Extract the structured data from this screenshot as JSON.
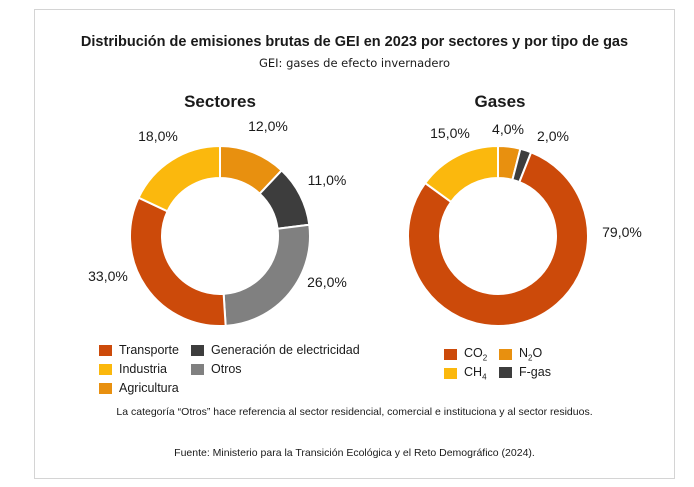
{
  "title": "Distribución de emisiones brutas de GEI en 2023 por sectores y por tipo de gas",
  "subtitle": "GEI: gases de efecto invernadero",
  "note": "La categoría “Otros” hace referencia al sector residencial, comercial e instituciona y al sector residuos.",
  "source": "Fuente: Ministerio para la Transición Ecológica y el Reto Demográfico (2024).",
  "chart_data": [
    {
      "type": "pie",
      "donut": true,
      "title": "Sectores",
      "slices": [
        {
          "label": "Agricultura",
          "value": 12.0,
          "display": "12,0%",
          "color": "#e8900f"
        },
        {
          "label": "Generación de electricidad",
          "value": 11.0,
          "display": "11,0%",
          "color": "#3d3d3d"
        },
        {
          "label": "Otros",
          "value": 26.0,
          "display": "26,0%",
          "color": "#808080"
        },
        {
          "label": "Transporte",
          "value": 33.0,
          "display": "33,0%",
          "color": "#cc4a0a"
        },
        {
          "label": "Industria",
          "value": 18.0,
          "display": "18,0%",
          "color": "#fbb80d"
        }
      ],
      "legend": [
        {
          "label": "Transporte",
          "color": "#cc4a0a"
        },
        {
          "label": "Generación de electricidad",
          "color": "#3d3d3d"
        },
        {
          "label": "Industria",
          "color": "#fbb80d"
        },
        {
          "label": "Otros",
          "color": "#808080"
        },
        {
          "label": "Agricultura",
          "color": "#e8900f"
        }
      ]
    },
    {
      "type": "pie",
      "donut": true,
      "title": "Gases",
      "slices": [
        {
          "label": "N2O",
          "value": 4.0,
          "display": "4,0%",
          "color": "#e8900f"
        },
        {
          "label": "F-gas",
          "value": 2.0,
          "display": "2,0%",
          "color": "#3d3d3d"
        },
        {
          "label": "CO2",
          "value": 79.0,
          "display": "79,0%",
          "color": "#cc4a0a"
        },
        {
          "label": "CH4",
          "value": 15.0,
          "display": "15,0%",
          "color": "#fbb80d"
        }
      ],
      "legend": [
        {
          "label": "CO",
          "sub": "2",
          "color": "#cc4a0a"
        },
        {
          "label": "N",
          "sub": "2",
          "tail": "O",
          "color": "#e8900f"
        },
        {
          "label": "CH",
          "sub": "4",
          "color": "#fbb80d"
        },
        {
          "label": "F-gas",
          "color": "#3d3d3d"
        }
      ]
    }
  ]
}
